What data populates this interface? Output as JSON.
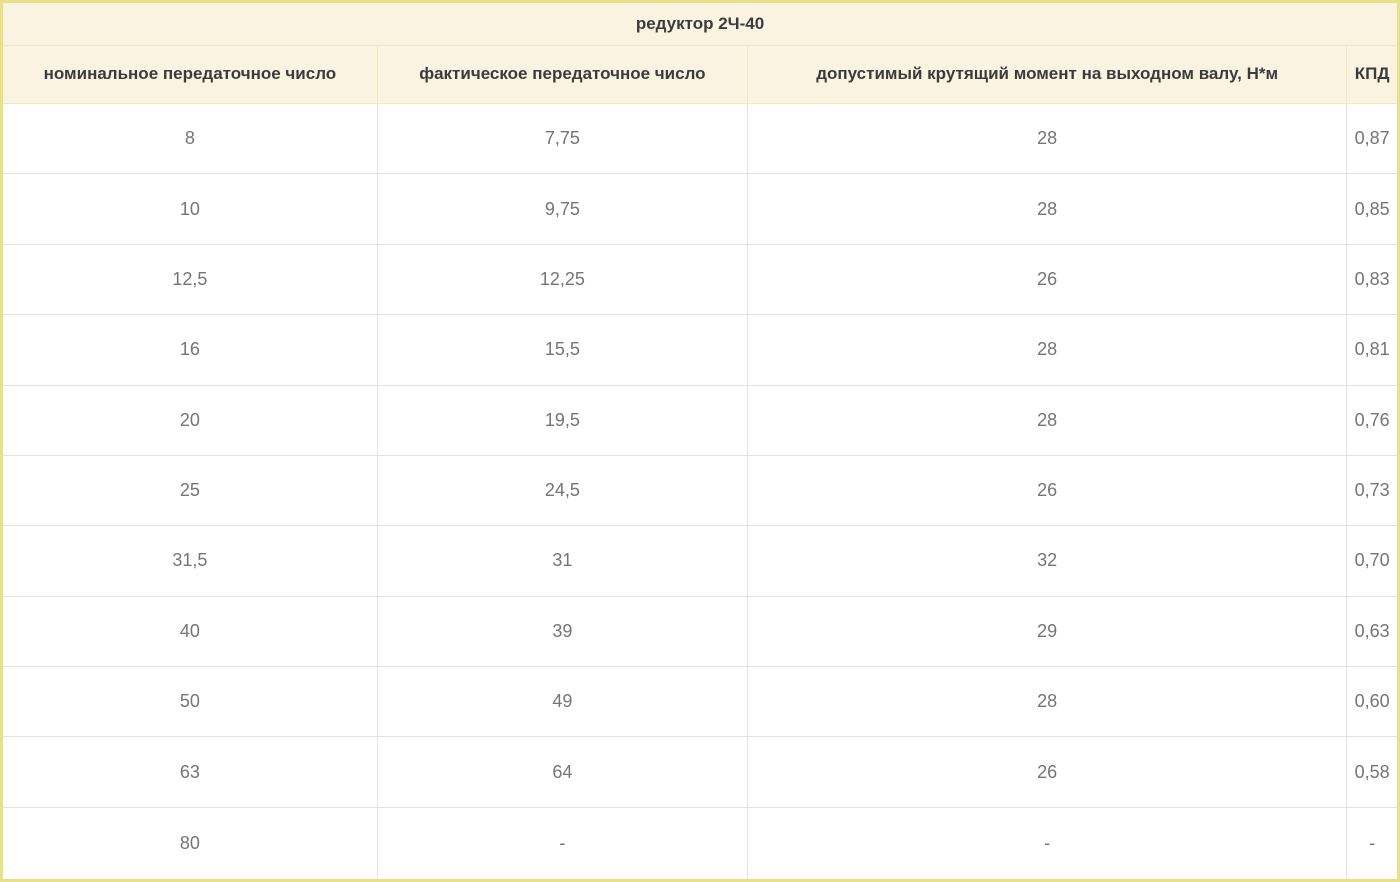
{
  "colors": {
    "outer_border": "#e7e287",
    "header_background": "#faf3e1",
    "header_divider": "#f3e9bd",
    "cell_border": "#e3e3e3",
    "header_text": "#3b3b3b",
    "cell_text": "#757575",
    "page_background": "#ffffff"
  },
  "chart_data": {
    "type": "table",
    "title": "редуктор 2Ч-40",
    "columns": [
      "номинальное передаточное число",
      "фактическое передаточное число",
      "допустимый крутящий момент на выходном валу, Н*м",
      "КПД"
    ],
    "rows": [
      [
        "8",
        "7,75",
        "28",
        "0,87"
      ],
      [
        "10",
        "9,75",
        "28",
        "0,85"
      ],
      [
        "12,5",
        "12,25",
        "26",
        "0,83"
      ],
      [
        "16",
        "15,5",
        "28",
        "0,81"
      ],
      [
        "20",
        "19,5",
        "28",
        "0,76"
      ],
      [
        "25",
        "24,5",
        "26",
        "0,73"
      ],
      [
        "31,5",
        "31",
        "32",
        "0,70"
      ],
      [
        "40",
        "39",
        "29",
        "0,63"
      ],
      [
        "50",
        "49",
        "28",
        "0,60"
      ],
      [
        "63",
        "64",
        "26",
        "0,58"
      ],
      [
        "80",
        "-",
        "-",
        "-"
      ]
    ]
  }
}
